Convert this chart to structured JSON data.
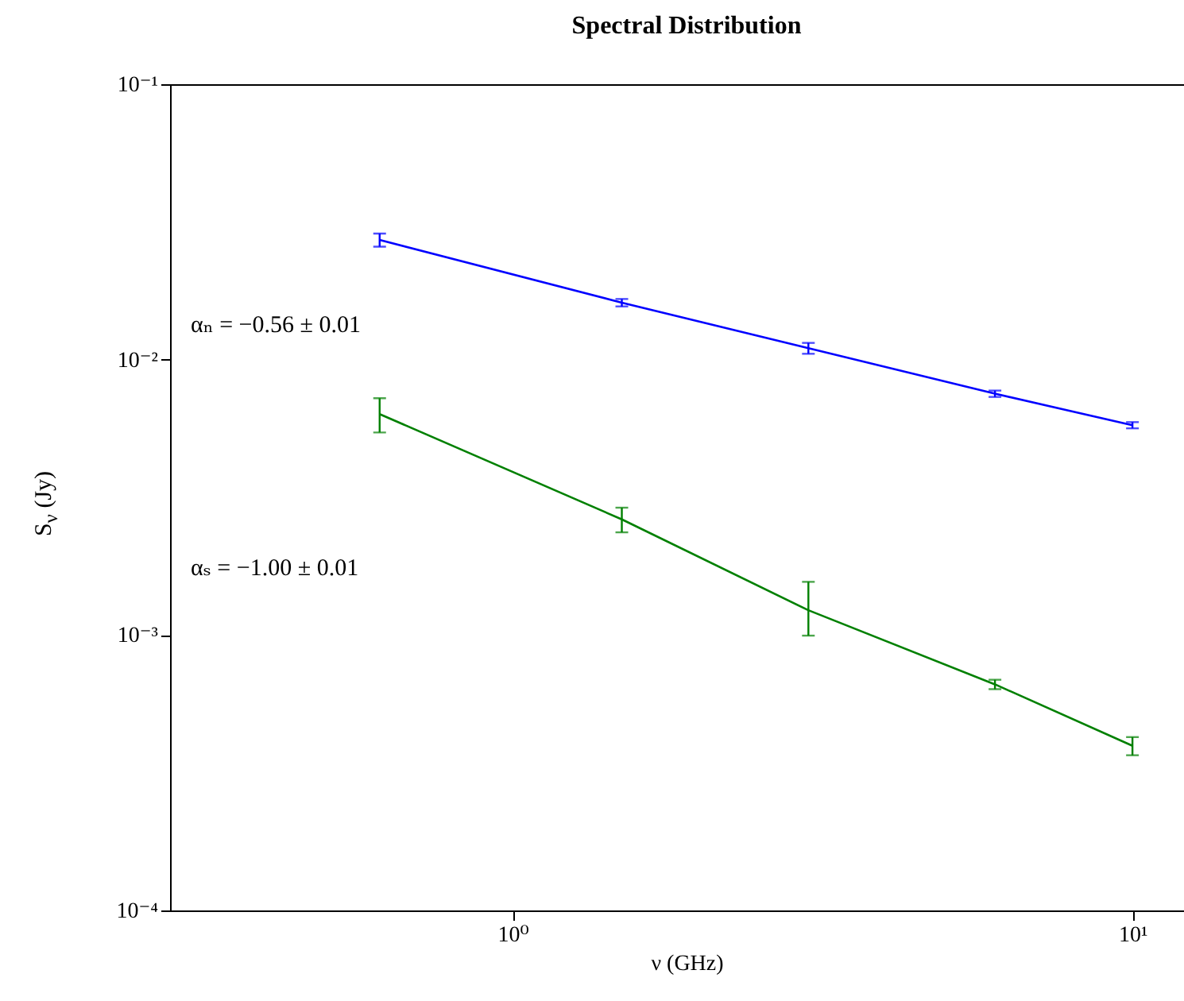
{
  "chart_data": {
    "type": "line",
    "title": "Spectral Distribution",
    "xlabel": "ν (GHz)",
    "ylabel": "S$_{ν}$ (Jy)",
    "x": [
      0.61,
      1.5,
      3,
      6,
      10
    ],
    "series": [
      {
        "color": "#0000ff",
        "values": [
          0.0272,
          0.0161,
          0.011,
          0.00752,
          0.00578
        ],
        "errors": [
          0.0015,
          0.0005,
          0.0005,
          0.0002,
          0.00015
        ]
      },
      {
        "color": "#008000",
        "values": [
          0.00634,
          0.00263,
          0.00123,
          0.000662,
          0.000396
        ],
        "errors": [
          0.0009,
          0.00027,
          [
            0.000995,
            0.00156
          ],
          2.6e-05,
          3e-05
        ]
      }
    ],
    "log": "xy",
    "xlim": [
      0.28,
      13
    ],
    "ylim": [
      0.0001,
      0.1
    ],
    "xticks": [
      {
        "value": 1,
        "label": "10⁰"
      },
      {
        "value": 10,
        "label": "10¹"
      }
    ],
    "yticks": [
      {
        "value": 0.0001,
        "label": "10⁻⁴"
      },
      {
        "value": 0.001,
        "label": "10⁻³"
      },
      {
        "value": 0.01,
        "label": "10⁻²"
      },
      {
        "value": 0.1,
        "label": "10⁻¹"
      }
    ],
    "annotations": [
      "αₙ = −0.56 ± 0.01",
      "αₛ = −1.00 ± 0.01"
    ],
    "marker": "none",
    "line_style": "solid",
    "grid": false,
    "legend": false
  }
}
